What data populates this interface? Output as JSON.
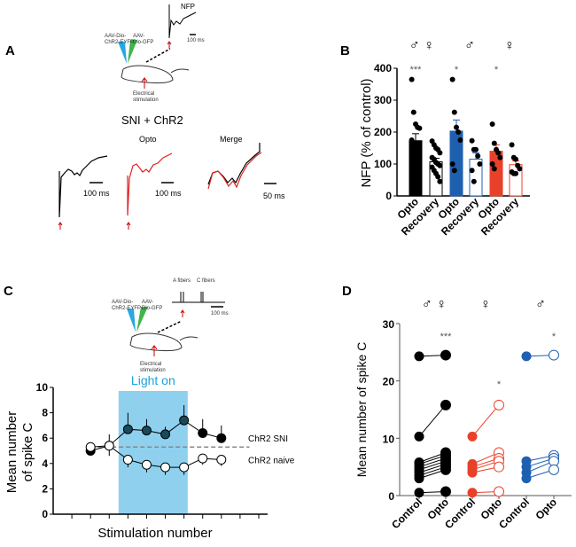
{
  "panels": {
    "A": {
      "label": "A",
      "virus1": [
        "AAV-Dio-",
        "ChR2-EYFP"
      ],
      "virus2": [
        "AAV-",
        "Dio-GFP"
      ],
      "stim": [
        "Electrical",
        "stimulation"
      ],
      "nfp": "NFP",
      "nfp_scale": "100 ms",
      "condition": "SNI + ChR2",
      "opto": "Opto",
      "merge": "Merge",
      "scale1": "100 ms",
      "scale2": "100 ms",
      "scale3": "50 ms"
    },
    "B": {
      "label": "B"
    },
    "C": {
      "label": "C",
      "virus1": [
        "AAV-Dio-",
        "ChR2-EYFP"
      ],
      "virus2": [
        "AAV-",
        "Dio-GFP"
      ],
      "stim": [
        "Electrical",
        "stimulation"
      ],
      "a_fibers": "A fibers",
      "c_fibers": "C fibers",
      "scale": "100 ms"
    },
    "D": {
      "label": "D"
    }
  },
  "chart_data": [
    {
      "id": "B",
      "type": "bar",
      "ylabel": "NFP (% of control)",
      "ylim": [
        0,
        400
      ],
      "yticks": [
        "0",
        "100",
        "200",
        "300",
        "400"
      ],
      "categories": [
        "Opto",
        "Recovery",
        "Opto",
        "Recovery",
        "Opto",
        "Recovery"
      ],
      "groups": [
        "♂ ♀",
        "♂",
        "♀"
      ],
      "colors": [
        "#000000",
        "#000000",
        "#1f5fb0",
        "#1f5fb0",
        "#e8412a",
        "#e8412a"
      ],
      "filled": [
        true,
        false,
        true,
        false,
        true,
        false
      ],
      "values": [
        173,
        107,
        203,
        115,
        140,
        98
      ],
      "sem_top": [
        195,
        118,
        238,
        135,
        160,
        110
      ],
      "significance": [
        "***",
        "",
        "*",
        "",
        "*",
        ""
      ],
      "points": [
        [
          365,
          262,
          225,
          215,
          212,
          175,
          165,
          160,
          155,
          145,
          135,
          130,
          125,
          120
        ],
        [
          172,
          160,
          150,
          145,
          135,
          120,
          115,
          105,
          100,
          95,
          90,
          80,
          70,
          60,
          45
        ],
        [
          365,
          262,
          215,
          200,
          175,
          100,
          80
        ],
        [
          173,
          145,
          145,
          125,
          100,
          80,
          45
        ],
        [
          225,
          165,
          145,
          135,
          120,
          100,
          85
        ],
        [
          160,
          120,
          115,
          95,
          85,
          75,
          70,
          70
        ]
      ]
    },
    {
      "id": "C",
      "type": "line",
      "xlabel": "Stimulation number",
      "ylabel": [
        "Mean number",
        "of spike C"
      ],
      "ylim": [
        0,
        10
      ],
      "yticks": [
        "0",
        "2",
        "4",
        "6",
        "8",
        "10"
      ],
      "xlim": [
        -1,
        10
      ],
      "x": [
        1,
        2,
        3,
        4,
        5,
        6,
        7,
        8
      ],
      "light_on": {
        "label": "Light on",
        "range": [
          2.5,
          6.2
        ],
        "color": "#8fd0ef"
      },
      "baseline": 5.3,
      "series": [
        {
          "name": "ChR2 SNI",
          "values": [
            5.0,
            5.4,
            6.7,
            6.6,
            6.3,
            7.4,
            6.4,
            6.0
          ],
          "err": [
            0.3,
            0.9,
            1.3,
            0.9,
            0.6,
            1.2,
            1.1,
            1.0
          ],
          "fill": [
            "#000",
            "#fff",
            "#1a4a5a",
            "#1a4a5a",
            "#1a4a5a",
            "#1a4a5a",
            "#000",
            "#000"
          ]
        },
        {
          "name": "ChR2 naive",
          "values": [
            5.3,
            5.4,
            4.3,
            3.9,
            3.7,
            3.7,
            4.4,
            4.3
          ],
          "err": [
            0.3,
            0.8,
            0.6,
            0.6,
            0.6,
            0.6,
            0.5,
            0.5
          ],
          "fill": [
            "#fff",
            "#fff",
            "#fff",
            "#fff",
            "#fff",
            "#fff",
            "#fff",
            "#fff"
          ]
        }
      ]
    },
    {
      "id": "D",
      "type": "scatter",
      "ylabel": "Mean number of spike C",
      "ylim": [
        0,
        30
      ],
      "yticks": [
        "0",
        "10",
        "20",
        "30"
      ],
      "categories": [
        "Control",
        "Opto",
        "Control",
        "Opto",
        "Control",
        "Opto"
      ],
      "groups": [
        "♂ ♀",
        "♀",
        "♂"
      ],
      "colors": [
        "#000000",
        "#e8412a",
        "#1f5fb0"
      ],
      "significance": [
        "***",
        "*",
        "*"
      ],
      "pairs": [
        {
          "control": [
            24.3,
            10.3,
            5.8,
            5.5,
            5.0,
            4.5,
            4.0,
            3.5,
            3.0,
            0.5
          ],
          "opto": [
            24.5,
            15.8,
            7.5,
            7.0,
            6.5,
            6.0,
            5.5,
            5.0,
            4.5,
            0.7
          ],
          "opto_filled": true
        },
        {
          "control": [
            10.3,
            5.5,
            5.0,
            4.5,
            4.0,
            0.5
          ],
          "opto": [
            15.8,
            7.5,
            6.5,
            6.0,
            5.0,
            0.7
          ],
          "opto_filled": false
        },
        {
          "control": [
            24.3,
            6.0,
            5.0,
            4.0,
            3.0
          ],
          "opto": [
            24.5,
            7.0,
            6.5,
            6.0,
            4.5
          ],
          "opto_filled": false
        }
      ]
    }
  ]
}
